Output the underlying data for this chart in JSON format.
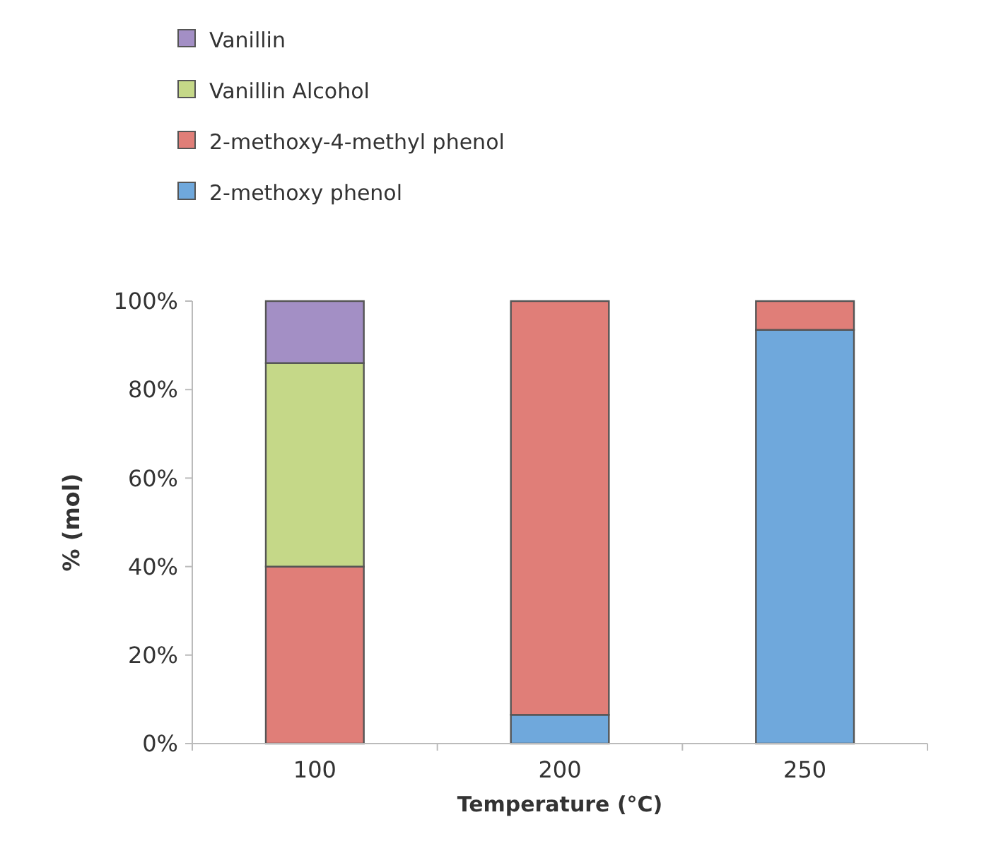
{
  "chart_data": {
    "type": "bar",
    "stacked": true,
    "xlabel": "Temperature (°C)",
    "ylabel": "% (mol)",
    "categories": [
      "100",
      "200",
      "250"
    ],
    "series": [
      {
        "name": "2-methoxy phenol",
        "color": "#6fa8dc",
        "values": [
          0,
          6.5,
          93.5
        ]
      },
      {
        "name": "2-methoxy-4-methyl phenol",
        "color": "#e07e78",
        "values": [
          40,
          93.5,
          6.5
        ]
      },
      {
        "name": "Vanillin Alcohol",
        "color": "#c5d888",
        "values": [
          46,
          0,
          0
        ]
      },
      {
        "name": "Vanillin",
        "color": "#a38fc5",
        "values": [
          14,
          0,
          0
        ]
      }
    ],
    "ylim": [
      0,
      100
    ],
    "yticks": [
      {
        "value": 0,
        "label": "0%"
      },
      {
        "value": 20,
        "label": "20%"
      },
      {
        "value": 40,
        "label": "40%"
      },
      {
        "value": 60,
        "label": "60%"
      },
      {
        "value": 80,
        "label": "80%"
      },
      {
        "value": 100,
        "label": "100%"
      }
    ],
    "legend": "top",
    "grid": false
  }
}
